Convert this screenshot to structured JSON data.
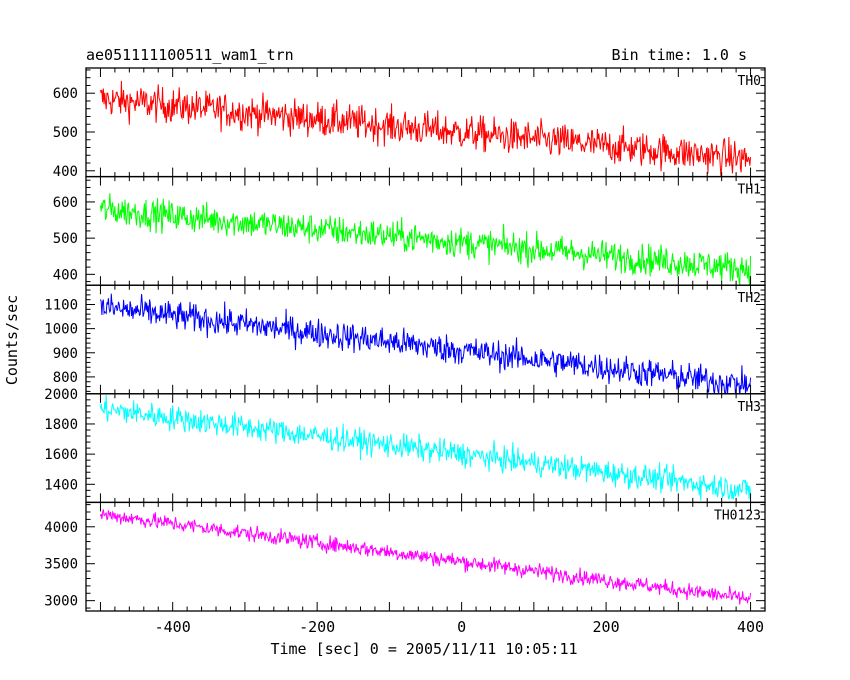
{
  "chart_data": {
    "type": "line",
    "title": "ae051111100511_wam1_trn",
    "subtitle": "Bin time: 1.0 s",
    "xlabel": "Time [sec] 0 = 2005/11/11 10:05:11",
    "ylabel": "Counts/sec",
    "xlim": [
      -520,
      420
    ],
    "xticks": [
      -400,
      -200,
      0,
      200,
      400
    ],
    "x_range": [
      -500,
      400
    ],
    "grid": false,
    "panels": [
      {
        "name": "TH0",
        "color": "#ff0000",
        "ylim": [
          385,
          665
        ],
        "yticks": [
          400,
          500,
          600
        ],
        "start": 585,
        "end": 430,
        "noise": 30
      },
      {
        "name": "TH1",
        "color": "#00ff00",
        "ylim": [
          370,
          670
        ],
        "yticks": [
          400,
          500,
          600
        ],
        "start": 580,
        "end": 415,
        "noise": 28
      },
      {
        "name": "TH2",
        "color": "#0000ff",
        "ylim": [
          730,
          1180
        ],
        "yticks": [
          800,
          900,
          1000,
          1100
        ],
        "start": 1090,
        "end": 765,
        "noise": 40
      },
      {
        "name": "TH3",
        "color": "#00ffff",
        "ylim": [
          1280,
          2000
        ],
        "yticks": [
          1400,
          1600,
          1800,
          2000
        ],
        "start": 1900,
        "end": 1360,
        "noise": 55
      },
      {
        "name": "TH0123",
        "color": "#ff00ff",
        "ylim": [
          2860,
          4330
        ],
        "yticks": [
          3000,
          3500,
          4000
        ],
        "start": 4170,
        "end": 3020,
        "noise": 70
      }
    ]
  }
}
